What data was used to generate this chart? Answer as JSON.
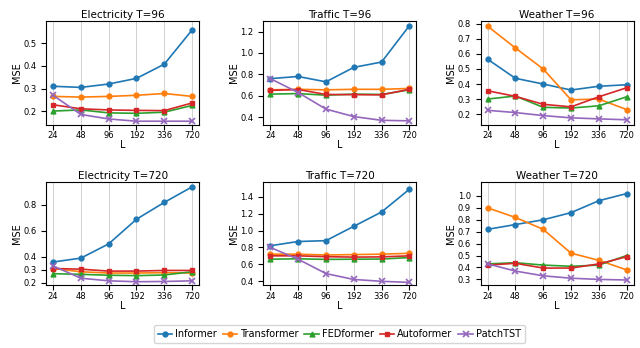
{
  "x": [
    24,
    48,
    96,
    192,
    336,
    720
  ],
  "models": [
    "Informer",
    "Transformer",
    "FEDformer",
    "Autoformer",
    "PatchTST"
  ],
  "colors": [
    "#1f77b4",
    "#ff7f0e",
    "#2ca02c",
    "#d62728",
    "#9467bd"
  ],
  "markers": [
    "o",
    "o",
    "^",
    "s",
    "x"
  ],
  "plots": [
    {
      "title": "Electricity T=96",
      "ylim": [
        0.14,
        0.6
      ],
      "yticks": [
        0.2,
        0.3,
        0.4,
        0.5
      ],
      "data": {
        "Informer": [
          0.31,
          0.305,
          0.32,
          0.345,
          0.408,
          0.56
        ],
        "Transformer": [
          0.265,
          0.262,
          0.265,
          0.27,
          0.278,
          0.265
        ],
        "FEDformer": [
          0.2,
          0.205,
          0.192,
          0.19,
          0.195,
          0.225
        ],
        "Autoformer": [
          0.228,
          0.21,
          0.205,
          0.203,
          0.202,
          0.236
        ],
        "PatchTST": [
          0.27,
          0.185,
          0.165,
          0.155,
          0.155,
          0.155
        ]
      }
    },
    {
      "title": "Traffic T=96",
      "ylim": [
        0.33,
        1.3
      ],
      "yticks": [
        0.4,
        0.6,
        0.8,
        1.0,
        1.2
      ],
      "data": {
        "Informer": [
          0.76,
          0.78,
          0.73,
          0.865,
          0.915,
          1.255
        ],
        "Transformer": [
          0.655,
          0.66,
          0.655,
          0.66,
          0.66,
          0.668
        ],
        "FEDformer": [
          0.615,
          0.62,
          0.605,
          0.615,
          0.612,
          0.655
        ],
        "Autoformer": [
          0.65,
          0.658,
          0.612,
          0.61,
          0.608,
          0.66
        ],
        "PatchTST": [
          0.76,
          0.63,
          0.475,
          0.405,
          0.37,
          0.365
        ]
      }
    },
    {
      "title": "Weather T=96",
      "ylim": [
        0.13,
        0.82
      ],
      "yticks": [
        0.2,
        0.3,
        0.4,
        0.5,
        0.6,
        0.7,
        0.8
      ],
      "data": {
        "Informer": [
          0.565,
          0.438,
          0.4,
          0.36,
          0.385,
          0.395
        ],
        "Transformer": [
          0.785,
          0.64,
          0.5,
          0.295,
          0.3,
          0.23
        ],
        "FEDformer": [
          0.3,
          0.32,
          0.245,
          0.24,
          0.255,
          0.315
        ],
        "Autoformer": [
          0.355,
          0.318,
          0.265,
          0.248,
          0.315,
          0.375
        ],
        "PatchTST": [
          0.225,
          0.21,
          0.19,
          0.175,
          0.168,
          0.162
        ]
      }
    },
    {
      "title": "Electricity T=720",
      "ylim": [
        0.18,
        0.98
      ],
      "yticks": [
        0.2,
        0.3,
        0.4,
        0.6,
        0.8
      ],
      "data": {
        "Informer": [
          0.36,
          0.39,
          0.5,
          0.69,
          0.82,
          0.94
        ],
        "Transformer": [
          0.31,
          0.285,
          0.275,
          0.275,
          0.278,
          0.275
        ],
        "FEDformer": [
          0.27,
          0.265,
          0.258,
          0.255,
          0.26,
          0.285
        ],
        "Autoformer": [
          0.31,
          0.305,
          0.29,
          0.29,
          0.295,
          0.295
        ],
        "PatchTST": [
          0.33,
          0.235,
          0.215,
          0.208,
          0.21,
          0.215
        ]
      }
    },
    {
      "title": "Traffic T=720",
      "ylim": [
        0.35,
        1.58
      ],
      "yticks": [
        0.4,
        0.6,
        0.8,
        1.0,
        1.2,
        1.4
      ],
      "data": {
        "Informer": [
          0.82,
          0.87,
          0.88,
          1.05,
          1.22,
          1.49
        ],
        "Transformer": [
          0.72,
          0.72,
          0.71,
          0.715,
          0.72,
          0.73
        ],
        "FEDformer": [
          0.66,
          0.665,
          0.658,
          0.66,
          0.662,
          0.68
        ],
        "Autoformer": [
          0.7,
          0.7,
          0.69,
          0.685,
          0.688,
          0.7
        ],
        "PatchTST": [
          0.8,
          0.66,
          0.49,
          0.42,
          0.398,
          0.385
        ]
      }
    },
    {
      "title": "Weather T=720",
      "ylim": [
        0.25,
        1.12
      ],
      "yticks": [
        0.3,
        0.4,
        0.5,
        0.6,
        0.7,
        0.8,
        0.9,
        1.0
      ],
      "data": {
        "Informer": [
          0.72,
          0.76,
          0.8,
          0.86,
          0.96,
          1.02
        ],
        "Transformer": [
          0.9,
          0.82,
          0.72,
          0.52,
          0.46,
          0.38
        ],
        "FEDformer": [
          0.43,
          0.44,
          0.42,
          0.41,
          0.42,
          0.5
        ],
        "Autoformer": [
          0.42,
          0.435,
          0.395,
          0.395,
          0.43,
          0.49
        ],
        "PatchTST": [
          0.43,
          0.37,
          0.33,
          0.31,
          0.3,
          0.295
        ]
      }
    }
  ],
  "legend_labels": [
    "Informer",
    "Transformer",
    "FEDformer",
    "Autoformer",
    "PatchTST"
  ]
}
